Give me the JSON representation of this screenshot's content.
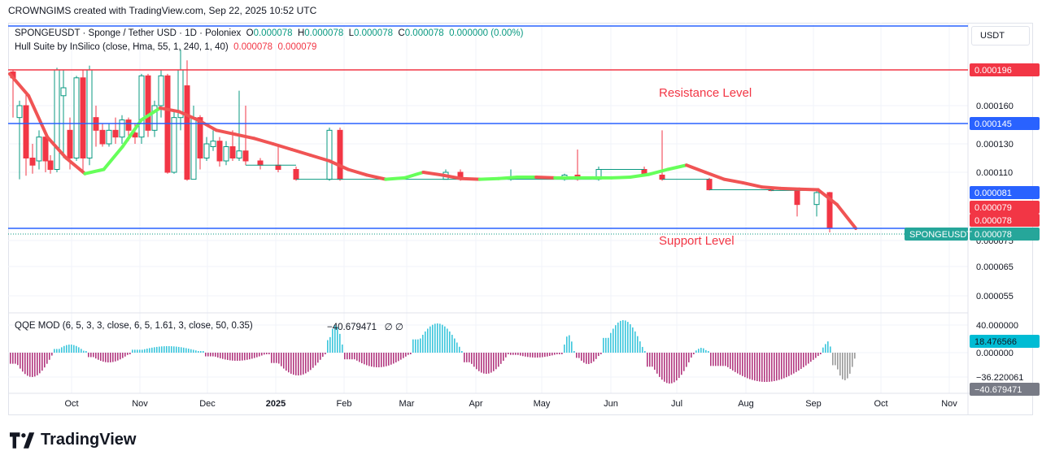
{
  "header": {
    "created_text": "CROWNGIMS created with TradingView.com, Sep 22, 2025 10:52 UTC"
  },
  "legend": {
    "symbol": "SPONGEUSDT · Sponge / Tether USD · 1D · Poloniex",
    "o_label": "O",
    "o_value": "0.000078",
    "h_label": "H",
    "h_value": "0.000078",
    "l_label": "L",
    "l_value": "0.000078",
    "c_label": "C",
    "c_value": "0.000078",
    "change": "0.000000 (0.00%)",
    "indicator": "Hull Suite by InSilico (close, Hma, 55, 1, 240, 1, 40)",
    "ind_v1": "0.000078",
    "ind_v2": "0.000079"
  },
  "qqe_legend": {
    "label": "QQE MOD (6, 5, 3, 3, close, 6, 5, 1.61, 3, close, 50, 0.35)",
    "value": "−40.679471",
    "nulls": "∅  ∅"
  },
  "currency_button": "USDT",
  "annotations": {
    "resistance": "Resistance Level",
    "support": "Support Level"
  },
  "price_axis": {
    "ticks": [
      "0.000160",
      "0.000130",
      "0.000110",
      "0.000075",
      "0.000065",
      "0.000055"
    ],
    "badges": {
      "resistance": "0.000196",
      "upper": "0.000145",
      "blue": "0.000081",
      "red1": "0.000079",
      "red2": "0.000078",
      "symbol": "SPONGEUSDT",
      "last": "0.000078"
    }
  },
  "qqe_axis": {
    "ticks": [
      "40.000000",
      "0.000000",
      "−36.220061"
    ],
    "badge_cyan": "18.476566",
    "badge_gray": "−40.679471"
  },
  "time_axis": [
    "Oct",
    "Nov",
    "Dec",
    "2025",
    "Feb",
    "Mar",
    "Apr",
    "May",
    "Jun",
    "Jul",
    "Aug",
    "Sep",
    "Oct",
    "Nov"
  ],
  "footer": {
    "brand": "TradingView"
  },
  "colors": {
    "up": "#089981",
    "down": "#f23645",
    "hull_up": "#66ff5a",
    "hull_down": "#f05454",
    "qqe_up": "#3bc6dc",
    "qqe_down": "#b2377f",
    "qqe_gray": "#9a9a9a",
    "line_blue": "#2962ff",
    "line_red": "#f23645"
  },
  "chart_data": {
    "type": "line",
    "title": "",
    "xlabel": "",
    "ylabel": "",
    "ylim": [
      5e-05,
      0.0002
    ],
    "horizontal_levels": [
      {
        "label": "Resistance Level",
        "value": 0.000196,
        "color": "#f23645"
      },
      {
        "label": "",
        "value": 0.000145,
        "color": "#2962ff"
      },
      {
        "label": "Support Level",
        "value": 8.1e-05,
        "color": "#2962ff"
      }
    ],
    "series": [
      {
        "x": [
          0,
          8,
          16,
          24,
          32,
          40,
          48,
          56,
          64,
          72,
          80,
          88,
          96,
          104,
          112,
          120,
          128,
          136,
          144,
          152,
          160,
          168,
          176,
          184,
          192,
          200,
          208,
          216,
          224,
          232,
          240,
          248,
          256,
          264,
          272,
          280,
          288,
          296,
          304,
          312,
          320,
          328,
          336,
          344,
          352,
          360
        ],
        "values": [
          0.000192,
          0.00017,
          0.000135,
          0.00012,
          0.000108,
          0.000112,
          0.000128,
          0.000148,
          0.000158,
          0.000155,
          0.000148,
          0.00014,
          0.000137,
          0.000134,
          0.00013,
          0.000126,
          0.000122,
          0.000118,
          0.000112,
          0.000106,
          0.0001,
          0.000102,
          0.00011,
          0.000106,
          0.000101,
          0.0001,
          0.000101,
          0.000103,
          0.000103,
          0.000102,
          0.000102,
          0.000102,
          0.000102,
          0.000103,
          0.000107,
          0.000112,
          0.000115,
          0.00011,
          0.0001,
          9.5e-05,
          8.9e-05,
          8.7e-05,
          8.6e-05,
          8.5e-05,
          8e-05,
          7.8e-05
        ]
      }
    ]
  }
}
